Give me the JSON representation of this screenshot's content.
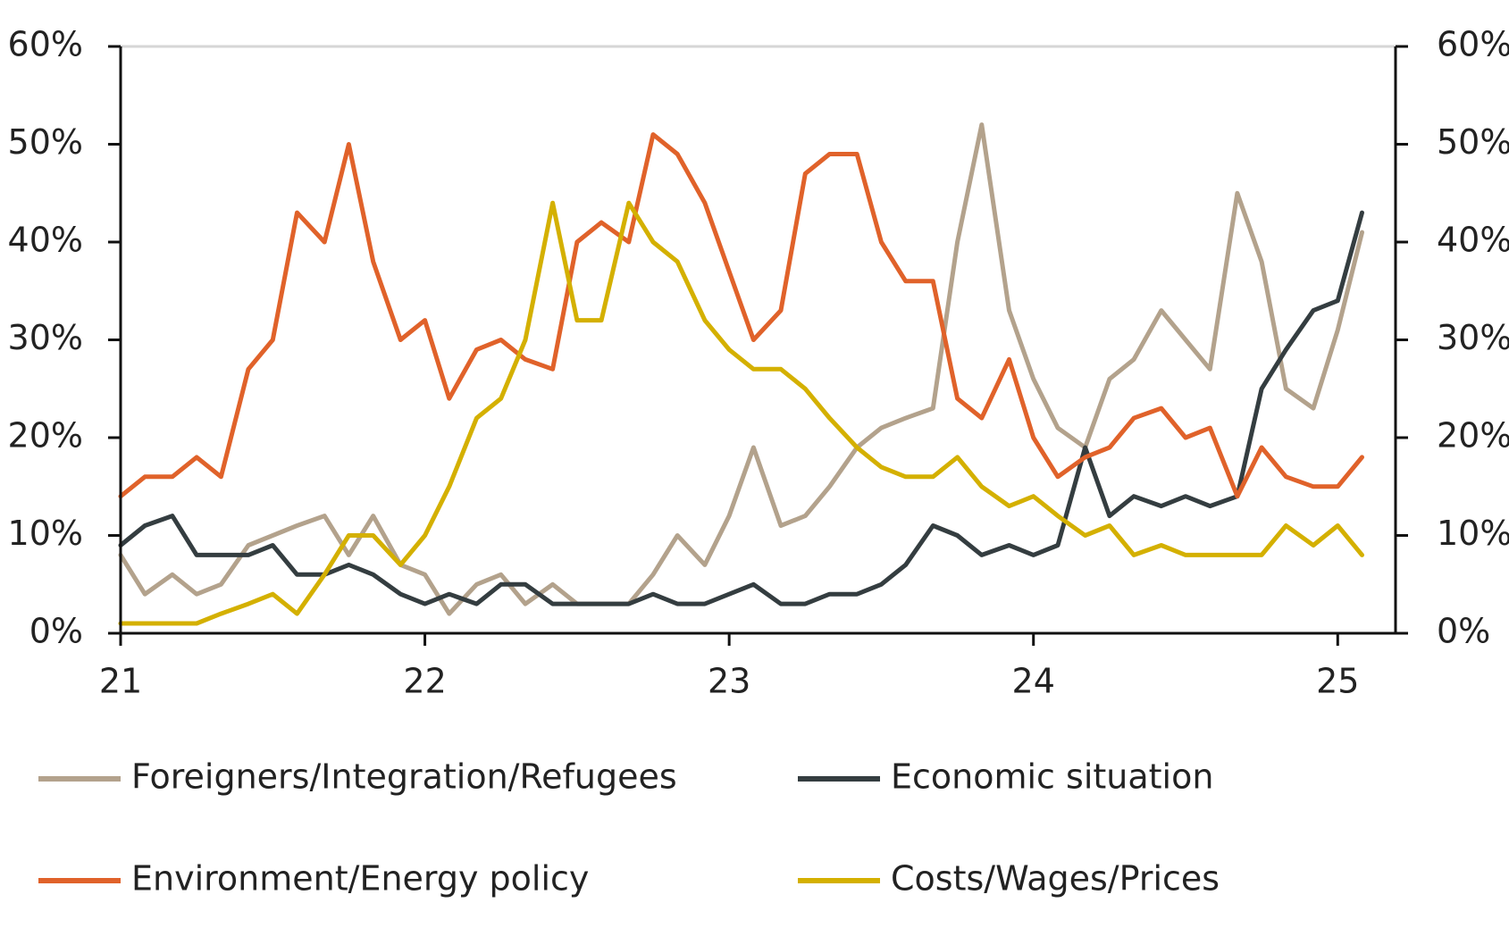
{
  "chart_data": {
    "type": "line",
    "x": [
      21,
      21.08,
      21.17,
      21.25,
      21.33,
      21.42,
      21.5,
      21.58,
      21.67,
      21.75,
      21.83,
      21.92,
      22,
      22.08,
      22.17,
      22.25,
      22.33,
      22.42,
      22.5,
      22.58,
      22.67,
      22.75,
      22.83,
      22.92,
      23,
      23.08,
      23.17,
      23.25,
      23.33,
      23.42,
      23.5,
      23.58,
      23.67,
      23.75,
      23.83,
      23.92,
      24,
      24.08,
      24.17,
      24.25,
      24.33,
      24.42,
      24.5,
      24.58,
      24.67,
      24.75,
      24.83,
      24.92,
      25,
      25.08
    ],
    "xlim": [
      21,
      25.19
    ],
    "xticks": [
      21,
      22,
      23,
      24,
      25
    ],
    "ylim": [
      0,
      60
    ],
    "yticks": [
      {
        "value": 0,
        "label": "0%"
      },
      {
        "value": 10,
        "label": "10%"
      },
      {
        "value": 20,
        "label": "20%"
      },
      {
        "value": 30,
        "label": "30%"
      },
      {
        "value": 40,
        "label": "40%"
      },
      {
        "value": 50,
        "label": "50%"
      },
      {
        "value": 60,
        "label": "60%"
      }
    ],
    "y2lim": [
      0,
      60
    ],
    "y2ticks": [
      {
        "value": 0,
        "label": "0%"
      },
      {
        "value": 10,
        "label": "10%"
      },
      {
        "value": 20,
        "label": "20%"
      },
      {
        "value": 30,
        "label": "30%"
      },
      {
        "value": 40,
        "label": "40%"
      },
      {
        "value": 50,
        "label": "50%"
      },
      {
        "value": 60,
        "label": "60%"
      }
    ],
    "series": [
      {
        "name": "Foreigners/Integration/Refugees",
        "color": "#b3a28c",
        "values": [
          8,
          4,
          6,
          4,
          5,
          9,
          10,
          11,
          12,
          8,
          12,
          7,
          6,
          2,
          5,
          6,
          3,
          5,
          3,
          3,
          3,
          6,
          10,
          7,
          12,
          19,
          11,
          12,
          15,
          19,
          21,
          22,
          23,
          40,
          52,
          33,
          26,
          21,
          19,
          26,
          28,
          33,
          30,
          27,
          45,
          38,
          25,
          23,
          31,
          41
        ]
      },
      {
        "name": "Economic situation",
        "color": "#343d40",
        "values": [
          9,
          11,
          12,
          8,
          8,
          8,
          9,
          6,
          6,
          7,
          6,
          4,
          3,
          4,
          3,
          5,
          5,
          3,
          3,
          3,
          3,
          4,
          3,
          3,
          4,
          5,
          3,
          3,
          4,
          4,
          5,
          7,
          11,
          10,
          8,
          9,
          8,
          9,
          19,
          12,
          14,
          13,
          14,
          13,
          14,
          25,
          29,
          33,
          34,
          43
        ]
      },
      {
        "name": "Environment/Energy policy",
        "color": "#e0622a",
        "values": [
          14,
          16,
          16,
          18,
          16,
          27,
          30,
          43,
          40,
          50,
          38,
          30,
          32,
          24,
          29,
          30,
          28,
          27,
          40,
          42,
          40,
          51,
          49,
          44,
          37,
          30,
          33,
          47,
          49,
          49,
          40,
          36,
          36,
          24,
          22,
          28,
          20,
          16,
          18,
          19,
          22,
          23,
          20,
          21,
          14,
          19,
          16,
          15,
          15,
          18
        ]
      },
      {
        "name": "Costs/Wages/Prices",
        "color": "#d4b000",
        "values": [
          1,
          1,
          1,
          1,
          2,
          3,
          4,
          2,
          6,
          10,
          10,
          7,
          10,
          15,
          22,
          24,
          30,
          44,
          32,
          32,
          44,
          40,
          38,
          32,
          29,
          27,
          27,
          25,
          22,
          19,
          17,
          16,
          16,
          18,
          15,
          13,
          14,
          12,
          10,
          11,
          8,
          9,
          8,
          8,
          8,
          8,
          11,
          9,
          11,
          8
        ]
      }
    ]
  }
}
